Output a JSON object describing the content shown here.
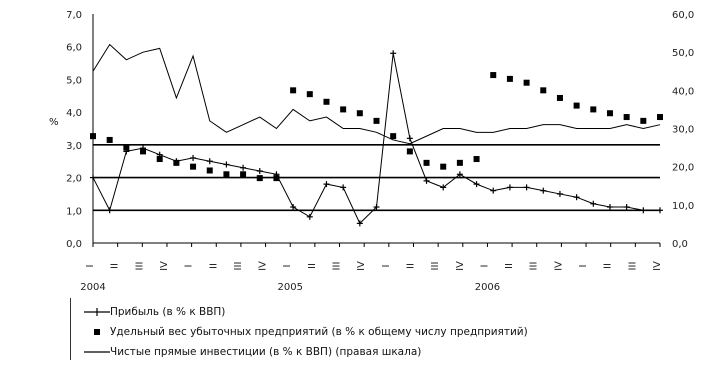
{
  "chart_data": {
    "type": "line",
    "left_axis": {
      "ticks": [
        "0,0",
        "1,0",
        "2,0",
        "3,0",
        "4,0",
        "5,0",
        "6,0",
        "7,0"
      ],
      "ylim": [
        0,
        7
      ]
    },
    "right_axis": {
      "ticks": [
        "0,0",
        "10,0",
        "20,0",
        "30,0",
        "40,0",
        "50,0",
        "60,0"
      ],
      "ylim": [
        0,
        60
      ]
    },
    "left_axis_mark": "%",
    "x_tick_labels": [
      "I",
      "II",
      "III",
      "IV",
      "I",
      "II",
      "III",
      "IV",
      "I",
      "II",
      "III",
      "IV",
      "I",
      "II",
      "III",
      "IV",
      "I",
      "II",
      "III",
      "IV",
      "I",
      "II",
      "III",
      "IV"
    ],
    "year_labels": [
      {
        "text": "2004",
        "at_index": 0
      },
      {
        "text": "2005",
        "at_index": 8
      },
      {
        "text": "2006",
        "at_index": 16
      }
    ],
    "grid": "horizontal lines at 1, 2 and 3 on the left axis",
    "series": [
      {
        "name": "Прибыль (в % к ВВП)",
        "axis": "left",
        "style": "line-plus-markers",
        "values": [
          2.0,
          1.0,
          2.8,
          2.9,
          2.7,
          2.5,
          2.6,
          2.5,
          2.4,
          2.3,
          2.2,
          2.1,
          1.1,
          0.8,
          1.8,
          1.7,
          0.6,
          1.1,
          5.8,
          3.2,
          1.9,
          1.7,
          2.1,
          1.8,
          1.6,
          1.7,
          1.7,
          1.6,
          1.5,
          1.4,
          1.2,
          1.1,
          1.1,
          1.0,
          1.0
        ]
      },
      {
        "name": "Удельный вес убыточных предприятий (в % к общему числу предприятий)",
        "axis": "right",
        "style": "square-markers",
        "values": [
          28.0,
          27.0,
          25.0,
          24.0,
          22.0,
          21.0,
          20.0,
          19.0,
          18.0,
          18.0,
          17.0,
          17.0,
          40.0,
          39.0,
          37.0,
          35.0,
          34.0,
          32.0,
          28.0,
          24.0,
          21.0,
          20.0,
          21.0,
          22.0,
          44.0,
          43.0,
          42.0,
          40.0,
          38.0,
          36.0,
          35.0,
          34.0,
          33.0,
          32.0,
          33.0
        ]
      },
      {
        "name": "Чистые прямые инвестиции (в % к ВВП) (правая шкала)",
        "axis": "right",
        "style": "line",
        "values": [
          45.0,
          52.0,
          48.0,
          50.0,
          51.0,
          38.0,
          49.0,
          32.0,
          29.0,
          31.0,
          33.0,
          30.0,
          35.0,
          32.0,
          33.0,
          30.0,
          30.0,
          29.0,
          27.0,
          26.0,
          28.0,
          30.0,
          30.0,
          29.0,
          29.0,
          30.0,
          30.0,
          31.0,
          31.0,
          30.0,
          30.0,
          30.0,
          31.0,
          30.0,
          31.0
        ]
      }
    ]
  },
  "legend": {
    "items": [
      {
        "label": "Прибыль (в % к ВВП)"
      },
      {
        "label": "Удельный вес убыточных предприятий (в % к общему числу предприятий)"
      },
      {
        "label": "Чистые прямые инвестиции (в % к ВВП) (правая шкала)"
      }
    ]
  }
}
